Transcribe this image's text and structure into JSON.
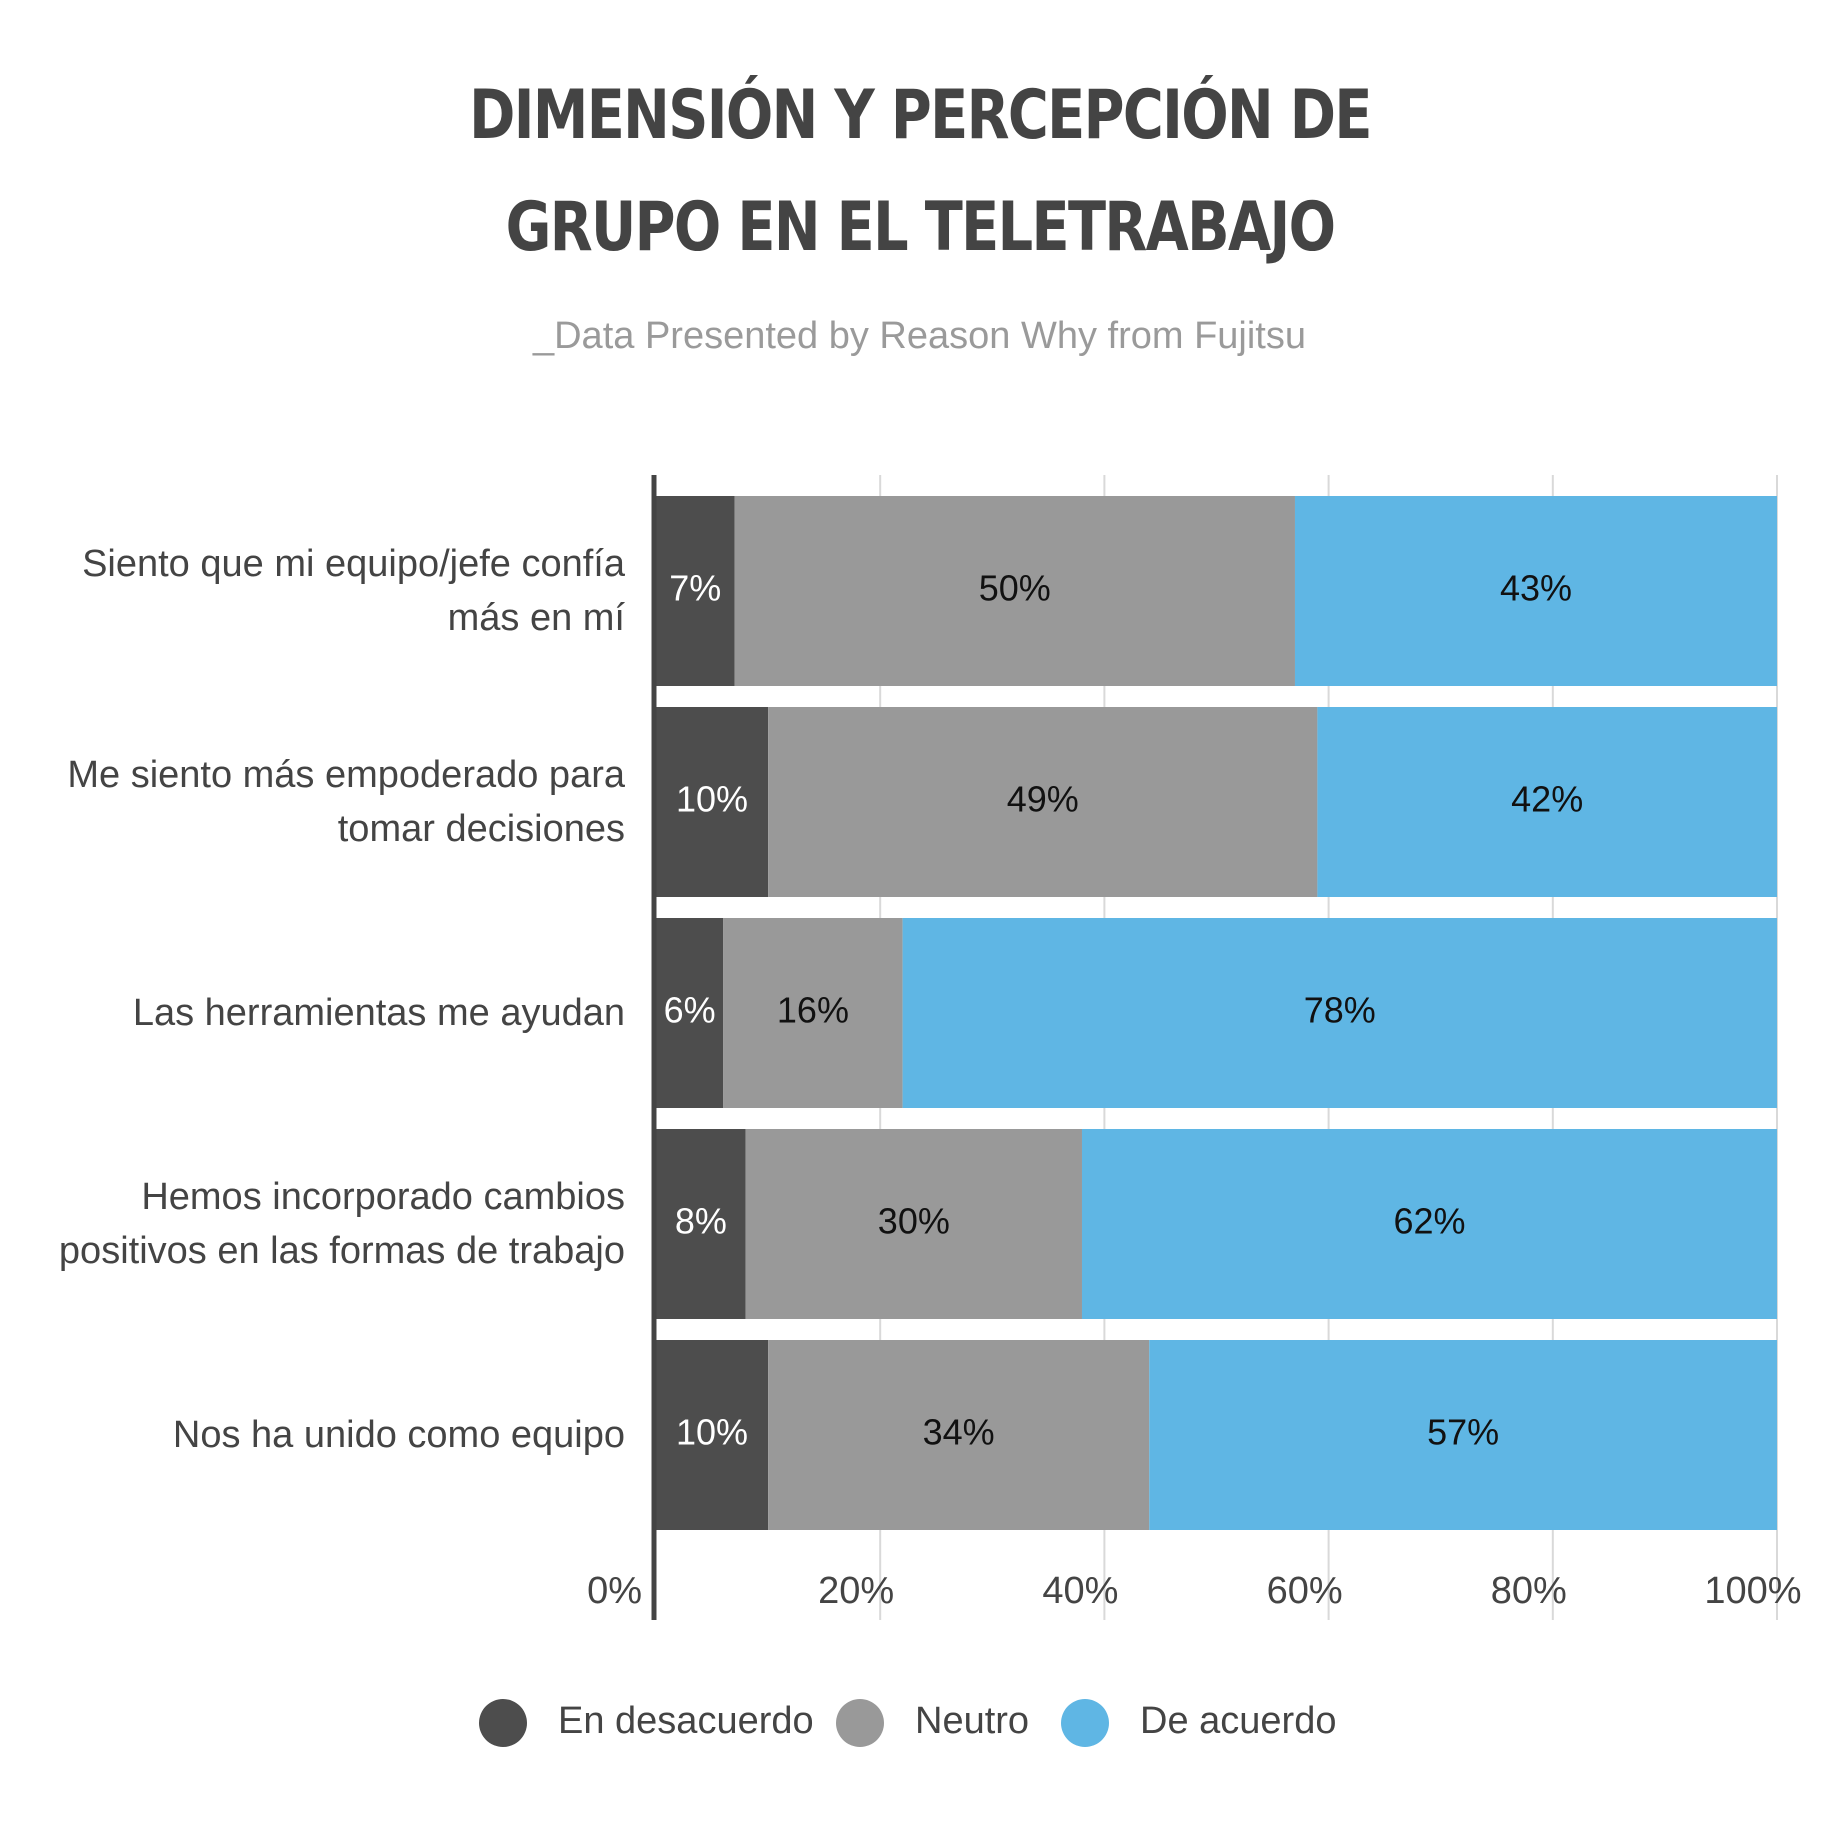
{
  "chart_data": {
    "type": "stacked_barh",
    "title": "DIMENSIÓN Y PERCEPCIÓN DE GRUPO EN EL TELETRABAJO",
    "subtitle": "_Data Presented by Reason Why from Fujitsu",
    "categories": [
      "Siento que mi equipo/jefe confía más en mí",
      "Me siento más empoderado para tomar decisiones",
      "Las herramientas me ayudan",
      "Hemos incorporado cambios positivos en las formas de trabajo",
      "Nos ha unido como equipo"
    ],
    "series": [
      {
        "name": "En desacuerdo",
        "color": "#4d4d4d",
        "label_color": "#ffffff",
        "values": [
          7,
          10,
          6,
          8,
          10
        ],
        "value_labels": [
          "7%",
          "10%",
          "6%",
          "8%",
          "10%"
        ]
      },
      {
        "name": "Neutro",
        "color": "#999999",
        "label_color": "#111111",
        "values": [
          50,
          49,
          16,
          30,
          34
        ],
        "value_labels": [
          "50%",
          "49%",
          "16%",
          "30%",
          "34%"
        ]
      },
      {
        "name": "De acuerdo",
        "color": "#5fb6e4",
        "label_color": "#111111",
        "values": [
          43,
          42,
          78,
          62,
          57
        ],
        "value_labels": [
          "43%",
          "42%",
          "78%",
          "62%",
          "57%"
        ]
      }
    ],
    "xlim": [
      0,
      100
    ],
    "xticks": [
      {
        "value": 0,
        "label": "0%"
      },
      {
        "value": 20,
        "label": "20%"
      },
      {
        "value": 40,
        "label": "40%"
      },
      {
        "value": 60,
        "label": "60%"
      },
      {
        "value": 80,
        "label": "80%"
      },
      {
        "value": 100,
        "label": "100%"
      }
    ],
    "grid": true,
    "legend": "bottom"
  }
}
